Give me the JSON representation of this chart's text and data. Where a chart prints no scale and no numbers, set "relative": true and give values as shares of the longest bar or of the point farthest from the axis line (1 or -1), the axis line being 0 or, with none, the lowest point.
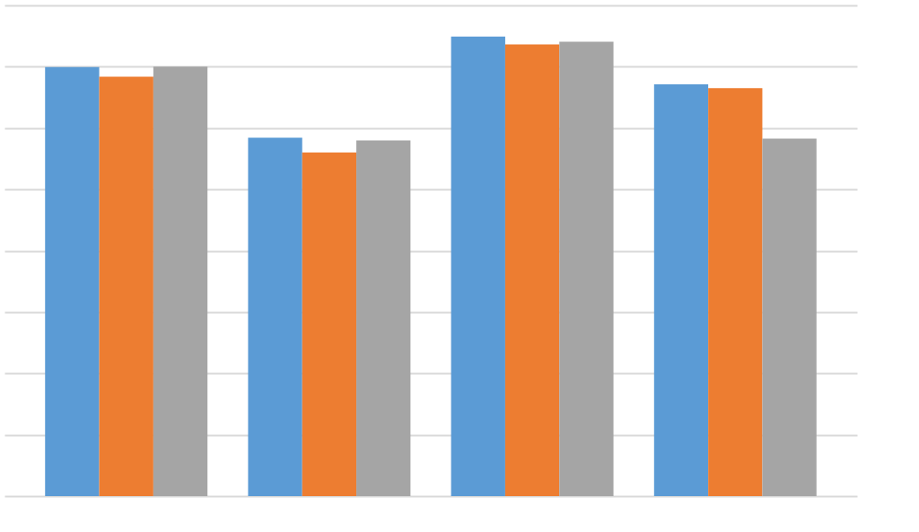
{
  "chart_data": {
    "type": "bar",
    "relative": true,
    "grid": "y",
    "categories": [
      null,
      null,
      null,
      null
    ],
    "series": [
      {
        "color": "#5b9bd5",
        "values": [
          0.934,
          0.78,
          1,
          0.896
        ]
      },
      {
        "color": "#ed7d31",
        "values": [
          0.913,
          0.748,
          0.983,
          0.888
        ]
      },
      {
        "color": "#a5a5a5",
        "values": [
          0.935,
          0.774,
          0.989,
          0.778
        ]
      }
    ]
  }
}
